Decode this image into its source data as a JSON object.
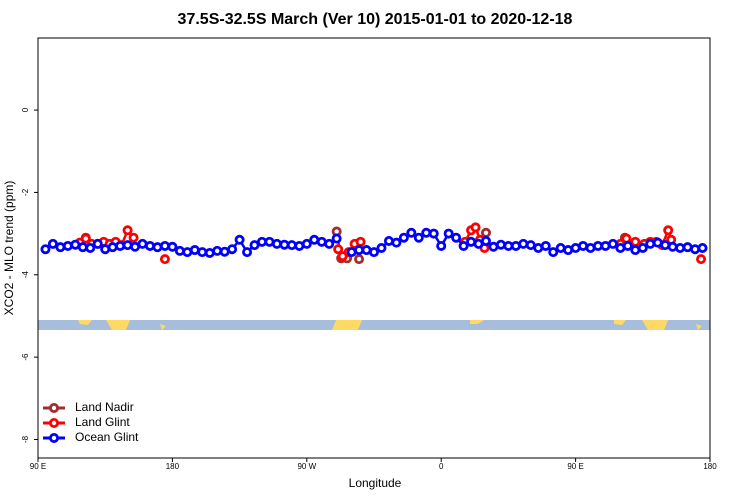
{
  "chart_data": {
    "type": "line",
    "title": "37.5S-32.5S March (Ver 10)   2015-01-01 to 2020-12-18",
    "x_label": "Longitude",
    "y_label": "XCO2 - MLO trend (ppm)",
    "xlim": [
      90,
      540
    ],
    "xticks": [
      {
        "value": 90,
        "label": "90 E"
      },
      {
        "value": 180,
        "label": "180"
      },
      {
        "value": 270,
        "label": "90 W"
      },
      {
        "value": 360,
        "label": "0"
      },
      {
        "value": 450,
        "label": "90 E"
      },
      {
        "value": 540,
        "label": "180"
      }
    ],
    "ylim": [
      -8.45,
      1.75
    ],
    "yticks": [
      0,
      -2,
      -4,
      -6,
      -8
    ],
    "legend": "bottom-left",
    "series": [
      {
        "name": "Land Nadir",
        "color": "#a52a2a",
        "x": [
          122,
          null,
          290,
          293,
          297,
          null,
          305,
          null,
          390,
          null,
          483
        ],
        "values": [
          -3.1,
          null,
          -2.95,
          -3.6,
          -3.6,
          null,
          -3.62,
          null,
          -2.98,
          null,
          -3.1
        ]
      },
      {
        "name": "Land Glint",
        "color": "#ff0000",
        "x": [
          118,
          122,
          126,
          130,
          134,
          138,
          142,
          146,
          150,
          154,
          null,
          175,
          null,
          291,
          294,
          298,
          302,
          306,
          null,
          376,
          380,
          383,
          386,
          389,
          null,
          480,
          484,
          490,
          496,
          500,
          504,
          508,
          512,
          514,
          null,
          534
        ],
        "values": [
          -3.22,
          -3.12,
          -3.25,
          -3.25,
          -3.2,
          -3.25,
          -3.2,
          -3.28,
          -2.92,
          -3.1,
          null,
          -3.62,
          null,
          -3.38,
          -3.55,
          -3.45,
          -3.25,
          -3.2,
          null,
          -3.2,
          -2.92,
          -2.85,
          -3.15,
          -3.35,
          null,
          -3.25,
          -3.12,
          -3.2,
          -3.25,
          -3.2,
          -3.2,
          -3.28,
          -2.92,
          -3.15,
          null,
          -3.62
        ]
      },
      {
        "name": "Ocean Glint",
        "color": "#0000ff",
        "x": [
          95,
          100,
          105,
          110,
          115,
          120,
          125,
          130,
          135,
          140,
          145,
          150,
          155,
          160,
          165,
          170,
          175,
          180,
          185,
          190,
          195,
          200,
          205,
          210,
          215,
          220,
          225,
          230,
          235,
          240,
          245,
          250,
          255,
          260,
          265,
          270,
          275,
          280,
          285,
          290,
          null,
          300,
          305,
          310,
          315,
          320,
          325,
          330,
          335,
          340,
          345,
          350,
          355,
          360,
          365,
          370,
          375,
          380,
          385,
          390,
          395,
          400,
          405,
          410,
          415,
          420,
          425,
          430,
          435,
          440,
          445,
          450,
          455,
          460,
          465,
          470,
          475,
          480,
          485,
          490,
          495,
          500,
          505,
          510,
          515,
          520,
          525,
          530,
          535
        ],
        "values": [
          -3.38,
          -3.25,
          -3.33,
          -3.3,
          -3.27,
          -3.33,
          -3.35,
          -3.25,
          -3.38,
          -3.33,
          -3.3,
          -3.28,
          -3.32,
          -3.25,
          -3.3,
          -3.33,
          -3.3,
          -3.32,
          -3.42,
          -3.45,
          -3.4,
          -3.45,
          -3.47,
          -3.42,
          -3.44,
          -3.38,
          -3.15,
          -3.45,
          -3.28,
          -3.2,
          -3.2,
          -3.25,
          -3.27,
          -3.28,
          -3.3,
          -3.25,
          -3.15,
          -3.2,
          -3.25,
          -3.12,
          null,
          -3.45,
          -3.4,
          -3.4,
          -3.45,
          -3.35,
          -3.18,
          -3.22,
          -3.1,
          -2.98,
          -3.1,
          -2.98,
          -3.0,
          -3.3,
          -3.0,
          -3.1,
          -3.3,
          -3.2,
          -3.25,
          -3.18,
          -3.32,
          -3.27,
          -3.3,
          -3.3,
          -3.25,
          -3.28,
          -3.35,
          -3.3,
          -3.45,
          -3.35,
          -3.4,
          -3.35,
          -3.3,
          -3.35,
          -3.3,
          -3.3,
          -3.25,
          -3.35,
          -3.3,
          -3.4,
          -3.35,
          -3.25,
          -3.22,
          -3.28,
          -3.32,
          -3.35,
          -3.33,
          -3.38,
          -3.35
        ]
      }
    ]
  }
}
